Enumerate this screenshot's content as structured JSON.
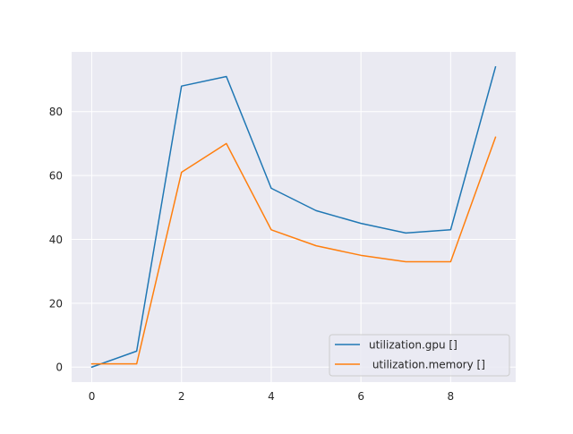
{
  "chart_data": {
    "type": "line",
    "title": "",
    "xlabel": "",
    "ylabel": "",
    "xlim": [
      -0.45,
      9.45
    ],
    "ylim": [
      -4.7,
      98.7
    ],
    "x_ticks": [
      0,
      2,
      4,
      6,
      8
    ],
    "y_ticks": [
      0,
      20,
      40,
      60,
      80
    ],
    "grid": true,
    "legend_position": "lower-right",
    "x": [
      0,
      1,
      2,
      3,
      4,
      5,
      6,
      7,
      8,
      9
    ],
    "series": [
      {
        "name": "utilization.gpu []",
        "color": "#1f77b4",
        "values": [
          0,
          5,
          88,
          91,
          56,
          49,
          45,
          42,
          43,
          94
        ]
      },
      {
        "name": " utilization.memory []",
        "color": "#ff7f0e",
        "values": [
          1,
          1,
          61,
          70,
          43,
          38,
          35,
          33,
          33,
          72
        ]
      }
    ],
    "style": {
      "plot_background": "#eaeaf2",
      "grid_color": "#ffffff"
    }
  }
}
